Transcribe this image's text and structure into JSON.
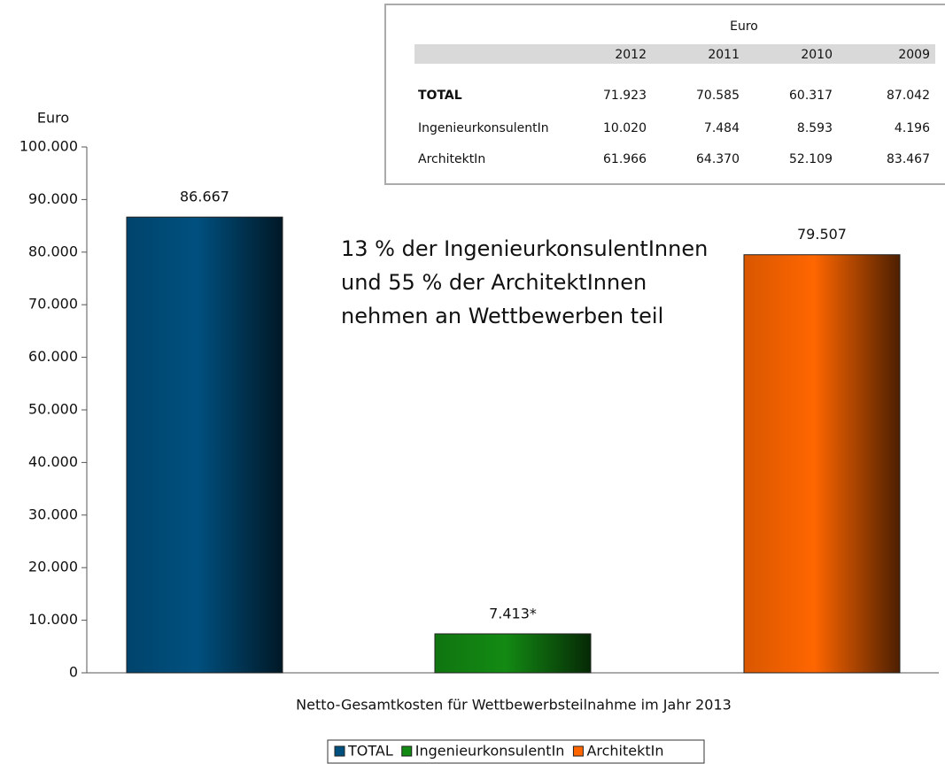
{
  "chart_data": {
    "type": "bar",
    "y_label": "Euro",
    "x_label": "Netto-Gesamtkosten für Wettbewerbsteilnahme im Jahr 2013",
    "annotation": [
      "13 % der IngenieurkonsulentInnen",
      "und 55 % der ArchitektInnen",
      "nehmen an Wettbewerben teil"
    ],
    "series": [
      {
        "name": "TOTAL",
        "color": "#00507f",
        "values": [
          86667
        ],
        "value_labels": [
          "86.667"
        ]
      },
      {
        "name": "IngenieurkonsulentIn",
        "color": "#138a13",
        "values": [
          7413
        ],
        "value_labels": [
          "7.413*"
        ]
      },
      {
        "name": "ArchitektIn",
        "color": "#ff6600",
        "values": [
          79507
        ],
        "value_labels": [
          "79.507"
        ]
      }
    ],
    "ylim": [
      0,
      100000
    ],
    "yticks": [
      0,
      {
        "value": 10000,
        "label": "10.000"
      },
      {
        "value": 20000,
        "label": "20.000"
      },
      {
        "value": 30000,
        "label": "30.000"
      },
      {
        "value": 40000,
        "label": "40.000"
      },
      {
        "value": 50000,
        "label": "50.000"
      },
      {
        "value": 60000,
        "label": "60.000"
      },
      {
        "value": 70000,
        "label": "70.000"
      },
      {
        "value": 80000,
        "label": "80.000"
      },
      {
        "value": 90000,
        "label": "90.000"
      },
      {
        "value": 100000,
        "label": "100.000"
      }
    ],
    "legend": "bottom"
  },
  "table": {
    "title": "Euro",
    "columns": [
      "2012",
      "2011",
      "2010",
      "2009"
    ],
    "rows": [
      [
        "TOTAL",
        "71.923",
        "70.585",
        "60.317",
        "87.042"
      ],
      [
        "IngenieurkonsulentIn",
        "10.020",
        "7.484",
        "8.593",
        "4.196"
      ],
      [
        "ArchitektIn",
        "61.966",
        "64.370",
        "52.109",
        "83.467"
      ]
    ]
  }
}
